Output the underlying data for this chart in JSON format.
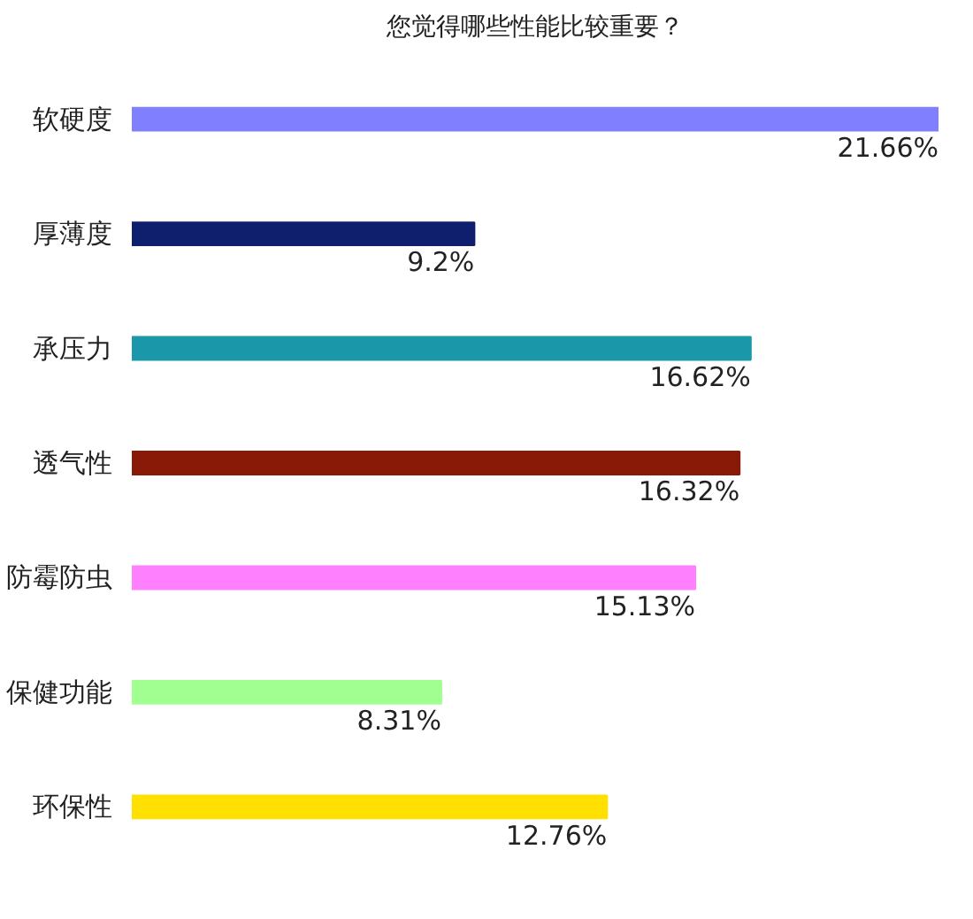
{
  "chart_data": {
    "type": "bar",
    "orientation": "horizontal",
    "title": "您觉得哪些性能比较重要？",
    "categories": [
      "软硬度",
      "厚薄度",
      "承压力",
      "透气性",
      "防霉防虫",
      "保健功能",
      "环保性"
    ],
    "values": [
      21.66,
      9.2,
      16.62,
      16.32,
      15.13,
      8.31,
      12.76
    ],
    "colors": [
      "#8080ff",
      "#0f1f6e",
      "#1a97a8",
      "#8a1a08",
      "#ff80ff",
      "#a0ff90",
      "#ffe000"
    ],
    "value_labels": [
      "21.66%",
      "9.2%",
      "16.62%",
      "16.32%",
      "15.13%",
      "8.31%",
      "12.76%"
    ],
    "grid": false
  }
}
